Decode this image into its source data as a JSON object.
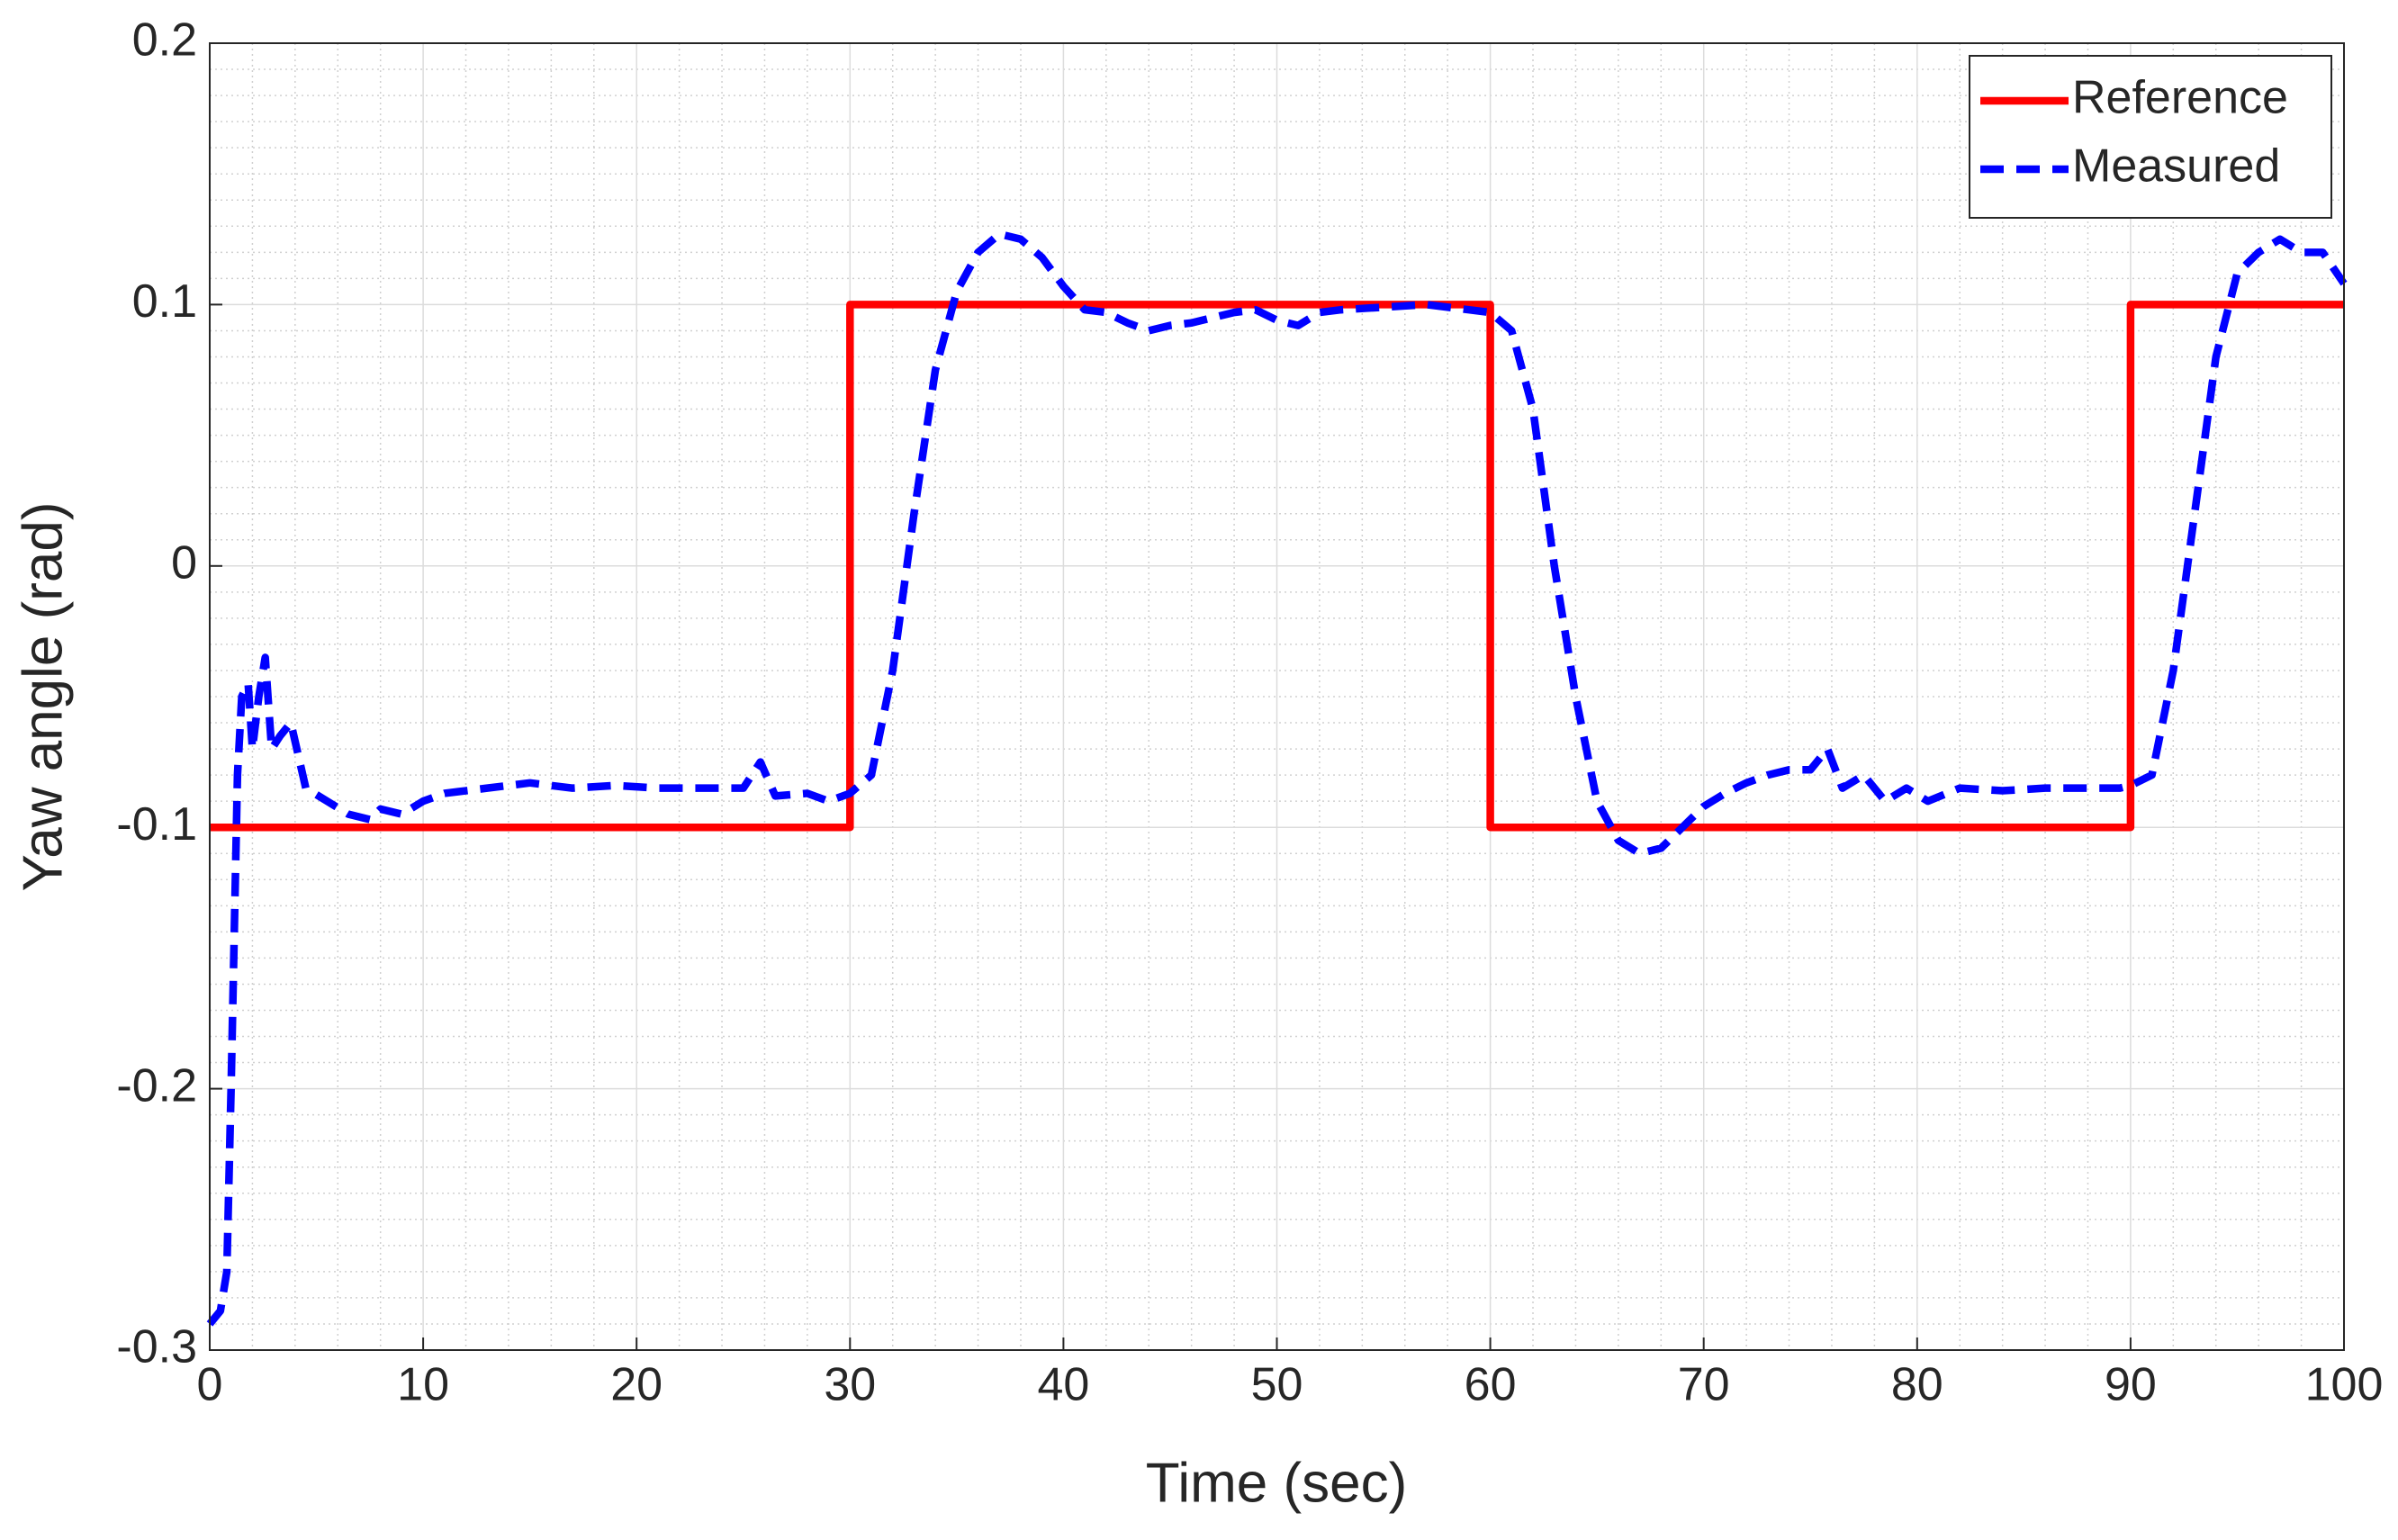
{
  "chart_data": {
    "type": "line",
    "xlabel": "Time (sec)",
    "ylabel": "Yaw angle (rad)",
    "xlim": [
      0,
      100
    ],
    "xticks": [
      0,
      10,
      20,
      30,
      40,
      50,
      60,
      70,
      80,
      90,
      100
    ],
    "ylim": [
      -0.3,
      0.2
    ],
    "yticks": [
      -0.3,
      -0.2,
      -0.1,
      0,
      0.1,
      0.2
    ],
    "grid": true,
    "minor_grid": true,
    "legend": "northeast",
    "series": [
      {
        "name": "Reference",
        "color": "#ff0000",
        "style": "solid",
        "x": [
          0,
          30,
          30,
          60,
          60,
          90,
          90,
          100
        ],
        "values": [
          -0.1,
          -0.1,
          0.1,
          0.1,
          -0.1,
          -0.1,
          0.1,
          0.1
        ]
      },
      {
        "name": "Measured",
        "color": "#0000ff",
        "style": "dashed",
        "x": [
          0,
          0.5,
          0.8,
          1.0,
          1.3,
          1.5,
          1.8,
          2.0,
          2.3,
          2.6,
          2.9,
          3.3,
          3.8,
          4.5,
          5.5,
          6.5,
          7.5,
          8,
          9,
          10,
          11,
          13,
          15,
          17,
          19,
          21,
          23,
          25,
          25.8,
          26.5,
          28,
          29,
          30,
          31,
          32,
          33,
          34,
          35,
          36,
          37,
          38,
          39,
          40,
          41,
          42,
          43,
          44,
          45,
          46,
          47,
          48,
          49,
          50,
          51,
          52,
          53,
          55,
          57,
          59,
          60,
          61,
          62,
          63,
          64,
          65,
          66,
          67,
          68,
          69,
          70,
          71,
          72,
          73,
          74,
          75,
          75.8,
          76.5,
          77.5,
          78.5,
          79.5,
          80.5,
          82,
          84,
          86,
          88,
          89.5,
          90,
          91,
          92,
          93,
          94,
          95,
          96,
          97,
          98,
          99,
          100
        ],
        "values": [
          -0.29,
          -0.285,
          -0.27,
          -0.2,
          -0.08,
          -0.05,
          -0.045,
          -0.07,
          -0.05,
          -0.035,
          -0.07,
          -0.065,
          -0.06,
          -0.085,
          -0.09,
          -0.095,
          -0.097,
          -0.093,
          -0.095,
          -0.09,
          -0.087,
          -0.085,
          -0.083,
          -0.085,
          -0.084,
          -0.085,
          -0.085,
          -0.085,
          -0.075,
          -0.088,
          -0.087,
          -0.09,
          -0.087,
          -0.08,
          -0.04,
          0.02,
          0.075,
          0.105,
          0.12,
          0.127,
          0.125,
          0.118,
          0.107,
          0.098,
          0.097,
          0.093,
          0.09,
          0.092,
          0.093,
          0.095,
          0.097,
          0.098,
          0.094,
          0.092,
          0.097,
          0.098,
          0.099,
          0.1,
          0.098,
          0.097,
          0.09,
          0.06,
          0.0,
          -0.05,
          -0.09,
          -0.105,
          -0.11,
          -0.108,
          -0.1,
          -0.092,
          -0.087,
          -0.083,
          -0.08,
          -0.078,
          -0.078,
          -0.07,
          -0.085,
          -0.08,
          -0.09,
          -0.085,
          -0.09,
          -0.085,
          -0.086,
          -0.085,
          -0.085,
          -0.085,
          -0.084,
          -0.08,
          -0.04,
          0.02,
          0.08,
          0.112,
          0.12,
          0.125,
          0.12,
          0.12,
          0.108
        ]
      }
    ]
  }
}
